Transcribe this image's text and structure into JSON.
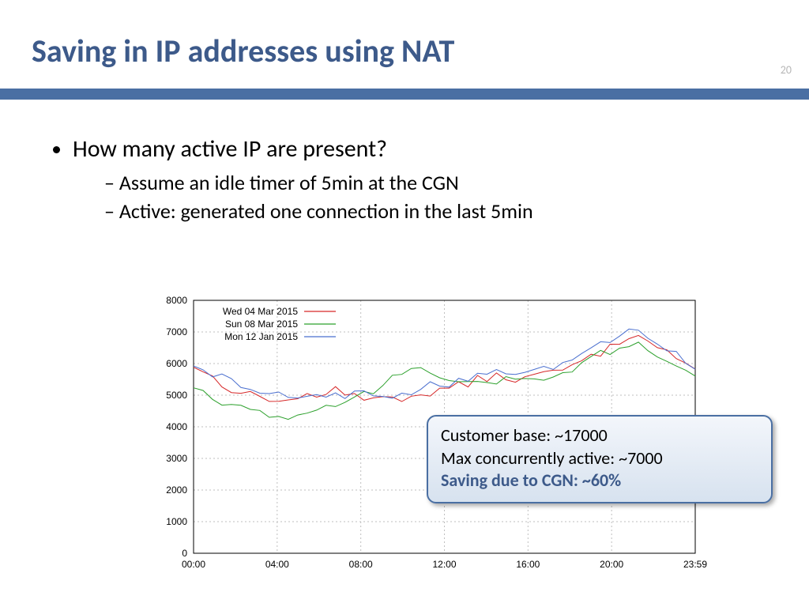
{
  "page_number": "20",
  "title": "Saving in IP addresses using NAT",
  "title_color": "#3d5a8a",
  "rule_color": "#4a6fa3",
  "bullets": {
    "main": "How many active IP are present?",
    "sub1": "Assume an idle timer of 5min at the CGN",
    "sub2": "Active: generated one connection in the last 5min"
  },
  "chart": {
    "type": "line",
    "background_color": "#ffffff",
    "grid_color": "#bfbfbf",
    "grid_dash": "2 3",
    "axis_color": "#000000",
    "tick_fontsize": 12,
    "ylim": [
      0,
      8000
    ],
    "ytick_step": 1000,
    "yticks": [
      0,
      1000,
      2000,
      3000,
      4000,
      5000,
      6000,
      7000,
      8000
    ],
    "xticks": [
      "00:00",
      "04:00",
      "08:00",
      "12:00",
      "16:00",
      "20:00",
      "23:59"
    ],
    "legend_pos": "top-left",
    "line_width": 1,
    "series": [
      {
        "label": "Wed 04 Mar 2015",
        "color": "#d62728",
        "y": [
          5950,
          5750,
          5550,
          5350,
          5200,
          5100,
          5000,
          4950,
          4900,
          4850,
          4800,
          4850,
          5100,
          5000,
          4900,
          5250,
          4950,
          5050,
          4900,
          5000,
          4950,
          4850,
          4900,
          5050,
          5000,
          5100,
          5150,
          5200,
          5300,
          5350,
          5500,
          5550,
          5600,
          5550,
          5500,
          5550,
          5600,
          5650,
          5750,
          5800,
          5900,
          6050,
          6200,
          6350,
          6500,
          6700,
          6850,
          7000,
          6800,
          6600,
          6400,
          6200,
          6000,
          5800
        ]
      },
      {
        "label": "Sun 08 Mar 2015",
        "color": "#2ca02c",
        "y": [
          5200,
          5050,
          4900,
          4800,
          4700,
          4600,
          4500,
          4400,
          4350,
          4300,
          4350,
          4400,
          4500,
          4600,
          4650,
          4700,
          4800,
          4900,
          5000,
          5100,
          5300,
          5500,
          5700,
          5800,
          5850,
          5700,
          5600,
          5500,
          5450,
          5400,
          5350,
          5350,
          5400,
          5500,
          5550,
          5500,
          5450,
          5500,
          5600,
          5700,
          5850,
          6000,
          6150,
          6300,
          6400,
          6550,
          6650,
          6600,
          6500,
          6300,
          6100,
          5900,
          5700,
          5500
        ]
      },
      {
        "label": "Mon 12 Jan 2015",
        "color": "#4a6fcf",
        "y": [
          6050,
          5850,
          5700,
          5550,
          5400,
          5300,
          5200,
          5100,
          5050,
          5000,
          4950,
          5000,
          5050,
          5100,
          5000,
          4950,
          5000,
          5050,
          5100,
          5000,
          4950,
          5000,
          5050,
          5100,
          5150,
          5300,
          5200,
          5350,
          5450,
          5550,
          5650,
          5700,
          5750,
          5700,
          5650,
          5700,
          5750,
          5800,
          5900,
          6000,
          6150,
          6300,
          6450,
          6600,
          6750,
          6900,
          7000,
          7050,
          6900,
          6700,
          6500,
          6300,
          6100,
          5900
        ]
      }
    ]
  },
  "callout": {
    "line1": "Customer base: ~17000",
    "line2": "Max concurrently active: ~7000",
    "line3": "Saving due to CGN: ~60%",
    "border_color": "#4a6fa3",
    "bg_top": "#f3f6fb",
    "bg_bottom": "#d7e2ef",
    "highlight_color": "#3d5a8a"
  }
}
